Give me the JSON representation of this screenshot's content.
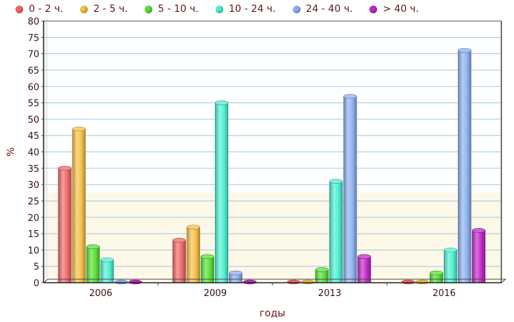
{
  "chart_data": {
    "type": "bar",
    "categories": [
      "2006",
      "2009",
      "2013",
      "2016"
    ],
    "xlabel": "годы",
    "ylabel": "%",
    "ylim": [
      0,
      80
    ],
    "yticks": [
      0,
      5,
      10,
      15,
      20,
      25,
      30,
      35,
      40,
      45,
      50,
      55,
      60,
      65,
      70,
      75,
      80
    ],
    "grid": true,
    "legend_position": "top",
    "series": [
      {
        "name": "0 - 2 ч.",
        "color": "#f06a6a",
        "values": [
          35,
          13,
          0,
          0
        ]
      },
      {
        "name": "2 - 5 ч.",
        "color": "#f5c04a",
        "values": [
          47,
          17,
          0,
          0
        ]
      },
      {
        "name": "5 - 10 ч.",
        "color": "#5be03a",
        "values": [
          11,
          8,
          4,
          3
        ]
      },
      {
        "name": "10 - 24 ч.",
        "color": "#4ff0d2",
        "values": [
          7,
          55,
          31,
          10
        ]
      },
      {
        "name": "24 - 40 ч.",
        "color": "#8eb2f0",
        "values": [
          0,
          3,
          57,
          71
        ]
      },
      {
        "name": "> 40 ч.",
        "color": "#c02ac8",
        "values": [
          0,
          0,
          8,
          16
        ]
      }
    ]
  }
}
